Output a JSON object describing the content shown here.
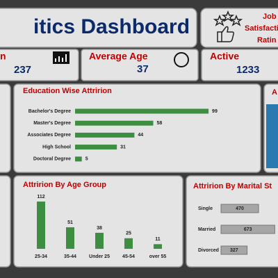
{
  "header": {
    "title": "itics Dashboard",
    "job_card": [
      "Job",
      "Satisfacti",
      "Ratin"
    ]
  },
  "kpis": [
    {
      "label": "n",
      "value": 237
    },
    {
      "label": "Average Age",
      "value": 37
    },
    {
      "label": "Active",
      "value": 1233
    }
  ],
  "right_panel": {
    "title": "A"
  },
  "chart_data": [
    {
      "type": "bar",
      "orientation": "horizontal",
      "title": "Education Wise Attririon",
      "categories": [
        "Bachelor's Degree",
        "Master's Degree",
        "Associates Degree",
        "High School",
        "Doctoral Degree"
      ],
      "values": [
        99,
        58,
        44,
        31,
        5
      ],
      "color": "#3e8e41"
    },
    {
      "type": "bar",
      "orientation": "vertical",
      "title": "Attririon By Age Group",
      "categories": [
        "25-34",
        "35-44",
        "Under 25",
        "45-54",
        "over 55"
      ],
      "values": [
        112,
        51,
        38,
        25,
        11
      ],
      "color": "#3e8e41"
    },
    {
      "type": "bar",
      "orientation": "horizontal",
      "title": "Attririon By Marital St",
      "categories": [
        "Single",
        "Married",
        "Divorced"
      ],
      "values": [
        470,
        673,
        327
      ],
      "color": "#a6a6a6"
    }
  ]
}
